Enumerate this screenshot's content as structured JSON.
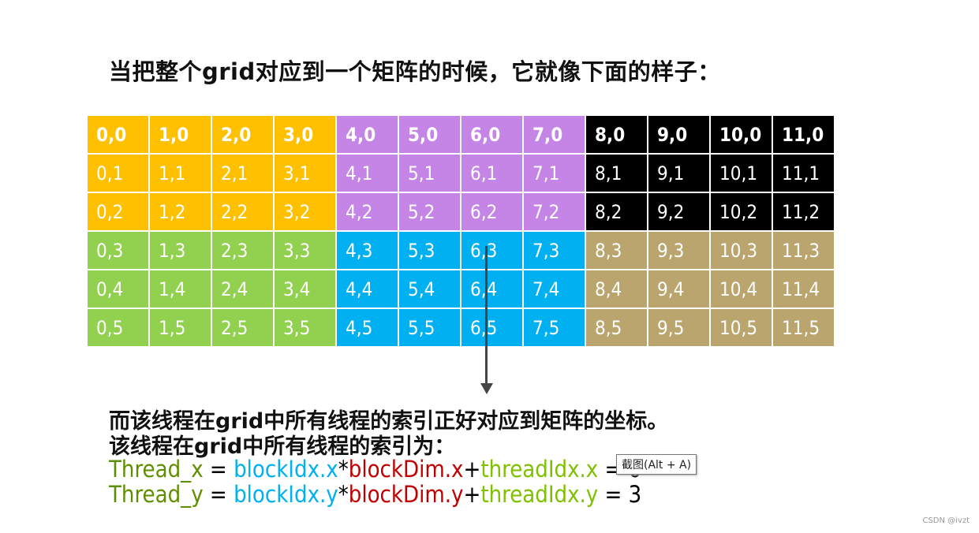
{
  "title": "当把整个grid对应到一个矩阵的时候，它就像下面的样子：",
  "grid": {
    "colors": {
      "yellow": "#FFC000",
      "purple": "#C585E6",
      "black": "#000000",
      "green": "#92D050",
      "blue": "#00B0F0",
      "tan": "#B9A56D"
    },
    "block_colors": [
      [
        "yellow",
        "purple",
        "black"
      ],
      [
        "green",
        "blue",
        "tan"
      ]
    ],
    "cols": 12,
    "rows": 6
  },
  "line1": "而该线程在grid中所有线程的索引正好对应到矩阵的坐标。",
  "line2": "该线程在grid中所有线程的索引为：",
  "formula_x": {
    "lhs": "Thread_x",
    "eq": " = ",
    "a": "blockIdx.x",
    "op1": "*",
    "b": "blockDim.x",
    "op2": "+",
    "c": "threadIdx.x",
    "res": " = 0"
  },
  "formula_y": {
    "lhs": "Thread_y",
    "eq": " = ",
    "a": "blockIdx.y",
    "op1": "*",
    "b": "blockDim.y",
    "op2": "+",
    "c": "threadIdx.y",
    "res": " = 3"
  },
  "tooltip": "截图(Alt + A)",
  "watermark": "CSDN @ivzt"
}
